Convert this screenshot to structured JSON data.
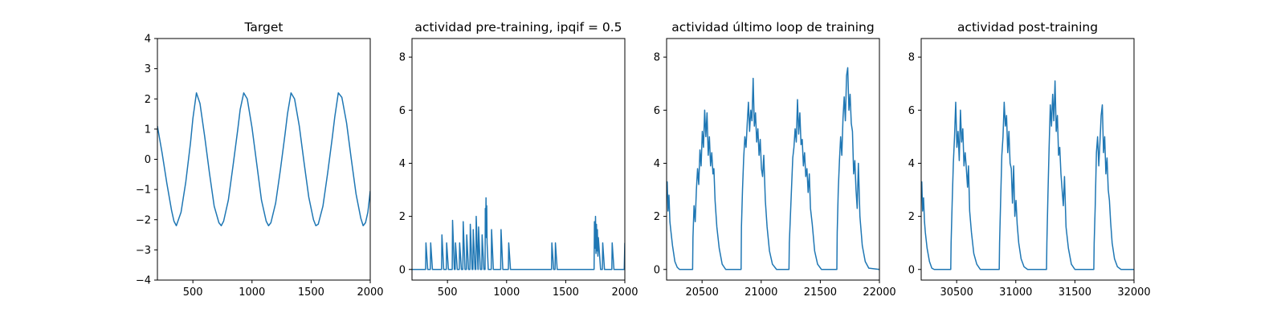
{
  "colors": {
    "series": "#1f77b4",
    "axes": "#000000",
    "background": "#ffffff"
  },
  "chart_data": [
    {
      "type": "line",
      "title": "Target",
      "xlim": [
        200,
        2000
      ],
      "ylim": [
        -4,
        4
      ],
      "xticks": [
        500,
        1000,
        1500,
        2000
      ],
      "xtick_labels": [
        "500",
        "1000",
        "1500",
        "2000"
      ],
      "yticks": [
        -4,
        -3,
        -2,
        -1,
        0,
        1,
        2,
        3,
        4
      ],
      "ytick_labels": [
        "−4",
        "−3",
        "−2",
        "−1",
        "0",
        "1",
        "2",
        "3",
        "4"
      ],
      "grid": false,
      "series": [
        {
          "x": [
            200,
            240,
            280,
            320,
            340,
            360,
            400,
            440,
            480,
            500,
            530,
            560,
            600,
            640,
            680,
            720,
            740,
            760,
            800,
            840,
            880,
            900,
            930,
            960,
            1000,
            1040,
            1080,
            1120,
            1140,
            1160,
            1200,
            1240,
            1280,
            1300,
            1330,
            1360,
            1400,
            1440,
            1480,
            1520,
            1540,
            1560,
            1600,
            1640,
            1680,
            1700,
            1730,
            1760,
            1800,
            1840,
            1880,
            1920,
            1940,
            1960,
            1980,
            2000
          ],
          "y": [
            1.1,
            0.2,
            -0.8,
            -1.7,
            -2.05,
            -2.2,
            -1.75,
            -0.75,
            0.55,
            1.35,
            2.2,
            1.85,
            0.75,
            -0.45,
            -1.55,
            -2.1,
            -2.2,
            -2.05,
            -1.35,
            -0.2,
            1.0,
            1.65,
            2.2,
            2.0,
            1.05,
            -0.15,
            -1.35,
            -2.05,
            -2.2,
            -2.1,
            -1.45,
            -0.35,
            0.85,
            1.5,
            2.2,
            2.0,
            1.1,
            -0.1,
            -1.25,
            -2.0,
            -2.2,
            -2.15,
            -1.55,
            -0.45,
            0.75,
            1.4,
            2.2,
            2.05,
            1.2,
            0.0,
            -1.15,
            -1.95,
            -2.2,
            -2.1,
            -1.75,
            -1.05
          ]
        }
      ]
    },
    {
      "type": "line",
      "title": "actividad pre-training, ipqif = 0.5",
      "xlim": [
        200,
        2000
      ],
      "ylim": [
        -0.4,
        8.7
      ],
      "xticks": [
        500,
        1000,
        1500,
        2000
      ],
      "xtick_labels": [
        "500",
        "1000",
        "1500",
        "2000"
      ],
      "yticks": [
        0,
        2,
        4,
        6,
        8
      ],
      "ytick_labels": [
        "0",
        "2",
        "4",
        "6",
        "8"
      ],
      "grid": false,
      "series": [
        {
          "x": [
            200,
            315,
            318,
            333,
            355,
            358,
            373,
            450,
            453,
            468,
            490,
            493,
            508,
            540,
            543,
            558,
            565,
            568,
            583,
            600,
            603,
            618,
            630,
            633,
            648,
            660,
            663,
            678,
            690,
            693,
            708,
            715,
            718,
            733,
            740,
            743,
            758,
            760,
            763,
            778,
            790,
            793,
            808,
            818,
            820,
            823,
            826,
            829,
            832,
            835,
            845,
            860,
            870,
            873,
            888,
            950,
            953,
            968,
            1015,
            1018,
            1033,
            1380,
            1383,
            1398,
            1410,
            1413,
            1428,
            1740,
            1743,
            1748,
            1752,
            1756,
            1760,
            1764,
            1768,
            1772,
            1776,
            1795,
            1810,
            1813,
            1828,
            1890,
            1893,
            1908,
            1995,
            2000
          ],
          "y": [
            0,
            0,
            1.0,
            0,
            0,
            1.0,
            0,
            0,
            1.3,
            0,
            0,
            1.0,
            0,
            0,
            1.85,
            0,
            0,
            1.0,
            0,
            0,
            1.0,
            0,
            0,
            1.8,
            0,
            0,
            1.3,
            0,
            0,
            1.7,
            0,
            0,
            1.5,
            0,
            0,
            2.0,
            0,
            0,
            1.6,
            0,
            0,
            1.3,
            0,
            0,
            2.3,
            1.5,
            2.7,
            1.2,
            2.4,
            1.0,
            0,
            0,
            0,
            1.5,
            0,
            0,
            1.5,
            0,
            0,
            1.0,
            0,
            0,
            1.0,
            0,
            0,
            1.0,
            0,
            0,
            1.8,
            0.8,
            2.0,
            0.6,
            1.7,
            0.7,
            1.5,
            0.5,
            1.2,
            0,
            0,
            1.0,
            0,
            0,
            1.0,
            0,
            0,
            1.0
          ]
        }
      ]
    },
    {
      "type": "line",
      "title": "actividad último loop de training",
      "xlim": [
        20200,
        22000
      ],
      "ylim": [
        -0.4,
        8.7
      ],
      "xticks": [
        20500,
        21000,
        21500,
        22000
      ],
      "xtick_labels": [
        "20500",
        "21000",
        "21500",
        "22000"
      ],
      "yticks": [
        0,
        2,
        4,
        6,
        8
      ],
      "ytick_labels": [
        "0",
        "2",
        "4",
        "6",
        "8"
      ],
      "grid": false,
      "series": [
        {
          "x": [
            20200,
            20205,
            20212,
            20220,
            20228,
            20235,
            20250,
            20270,
            20290,
            20310,
            20420,
            20423,
            20432,
            20442,
            20452,
            20462,
            20472,
            20482,
            20492,
            20502,
            20512,
            20522,
            20532,
            20542,
            20552,
            20562,
            20572,
            20582,
            20592,
            20600,
            20610,
            20625,
            20645,
            20670,
            20700,
            20830,
            20833,
            20842,
            20852,
            20862,
            20872,
            20882,
            20892,
            20902,
            20912,
            20922,
            20932,
            20942,
            20952,
            20962,
            20972,
            20982,
            20992,
            21002,
            21012,
            21022,
            21035,
            21050,
            21070,
            21095,
            21130,
            21235,
            21238,
            21247,
            21257,
            21267,
            21277,
            21287,
            21297,
            21307,
            21317,
            21327,
            21337,
            21347,
            21357,
            21367,
            21377,
            21387,
            21397,
            21407,
            21417,
            21432,
            21452,
            21477,
            21510,
            21640,
            21643,
            21652,
            21662,
            21672,
            21682,
            21692,
            21702,
            21712,
            21722,
            21732,
            21742,
            21752,
            21762,
            21772,
            21782,
            21792,
            21802,
            21812,
            21822,
            21835,
            21855,
            21880,
            21910,
            22000
          ],
          "y": [
            3.0,
            3.3,
            2.2,
            2.8,
            1.8,
            1.5,
            0.9,
            0.3,
            0.08,
            0.0,
            0.0,
            1.2,
            2.4,
            1.8,
            3.0,
            3.8,
            3.2,
            4.5,
            3.9,
            5.2,
            4.6,
            6.0,
            5.0,
            5.9,
            4.3,
            5.0,
            3.9,
            4.4,
            3.6,
            3.8,
            2.6,
            1.6,
            0.8,
            0.2,
            0.0,
            0.0,
            1.6,
            3.0,
            4.2,
            5.0,
            4.6,
            5.5,
            6.3,
            5.2,
            6.0,
            5.6,
            7.2,
            5.4,
            5.9,
            4.8,
            5.3,
            4.3,
            4.9,
            3.8,
            3.5,
            4.3,
            2.6,
            1.6,
            0.7,
            0.2,
            0.0,
            0.0,
            1.0,
            2.0,
            3.1,
            4.2,
            4.6,
            5.3,
            4.8,
            6.4,
            5.1,
            5.9,
            4.7,
            4.9,
            3.9,
            4.4,
            3.5,
            3.8,
            2.9,
            3.6,
            2.3,
            1.7,
            0.7,
            0.2,
            0.0,
            0.0,
            1.4,
            3.0,
            4.1,
            5.0,
            4.3,
            5.7,
            6.5,
            5.6,
            7.3,
            7.6,
            6.0,
            6.6,
            5.5,
            5.2,
            3.6,
            4.1,
            3.0,
            2.3,
            4.0,
            2.0,
            0.9,
            0.3,
            0.05,
            0.0
          ]
        }
      ]
    },
    {
      "type": "line",
      "title": "actividad post-training",
      "xlim": [
        30200,
        32000
      ],
      "ylim": [
        -0.4,
        8.7
      ],
      "xticks": [
        30500,
        31000,
        31500,
        32000
      ],
      "xtick_labels": [
        "30500",
        "31000",
        "31500",
        "32000"
      ],
      "yticks": [
        0,
        2,
        4,
        6,
        8
      ],
      "ytick_labels": [
        "0",
        "2",
        "4",
        "6",
        "8"
      ],
      "grid": false,
      "series": [
        {
          "x": [
            30200,
            30205,
            30212,
            30220,
            30228,
            30235,
            30250,
            30270,
            30290,
            30310,
            30450,
            30453,
            30462,
            30472,
            30482,
            30492,
            30502,
            30512,
            30522,
            30532,
            30542,
            30552,
            30562,
            30572,
            30582,
            30592,
            30600,
            30610,
            30625,
            30645,
            30670,
            30700,
            30860,
            30863,
            30872,
            30882,
            30892,
            30902,
            30912,
            30922,
            30932,
            30942,
            30952,
            30962,
            30972,
            30982,
            30992,
            31002,
            31012,
            31025,
            31045,
            31070,
            31100,
            31260,
            31263,
            31272,
            31282,
            31292,
            31302,
            31312,
            31322,
            31332,
            31342,
            31352,
            31362,
            31372,
            31382,
            31392,
            31402,
            31412,
            31425,
            31445,
            31470,
            31500,
            31660,
            31663,
            31672,
            31682,
            31692,
            31702,
            31712,
            31722,
            31732,
            31742,
            31752,
            31762,
            31772,
            31782,
            31792,
            31802,
            31815,
            31835,
            31860,
            31890,
            32000
          ],
          "y": [
            3.0,
            3.3,
            2.2,
            2.7,
            1.8,
            1.4,
            0.8,
            0.3,
            0.05,
            0.0,
            0.0,
            1.0,
            2.5,
            4.0,
            5.0,
            6.3,
            4.6,
            5.2,
            4.1,
            6.0,
            4.8,
            5.3,
            3.9,
            4.4,
            3.8,
            3.1,
            3.9,
            2.2,
            1.4,
            0.6,
            0.2,
            0.0,
            0.0,
            1.0,
            2.6,
            4.3,
            5.0,
            6.3,
            5.4,
            5.8,
            4.4,
            5.2,
            4.0,
            3.8,
            2.5,
            3.9,
            2.0,
            2.6,
            1.7,
            1.0,
            0.4,
            0.1,
            0.0,
            0.0,
            1.0,
            2.8,
            4.6,
            6.2,
            5.4,
            6.6,
            5.6,
            7.1,
            5.2,
            5.8,
            4.3,
            4.6,
            3.6,
            3.0,
            2.4,
            3.5,
            1.6,
            0.8,
            0.2,
            0.0,
            0.0,
            1.0,
            2.4,
            4.4,
            5.0,
            3.9,
            4.8,
            5.8,
            6.2,
            4.4,
            5.0,
            3.6,
            4.2,
            3.0,
            2.6,
            1.8,
            1.0,
            0.4,
            0.1,
            0.0,
            0.0
          ]
        }
      ]
    }
  ]
}
